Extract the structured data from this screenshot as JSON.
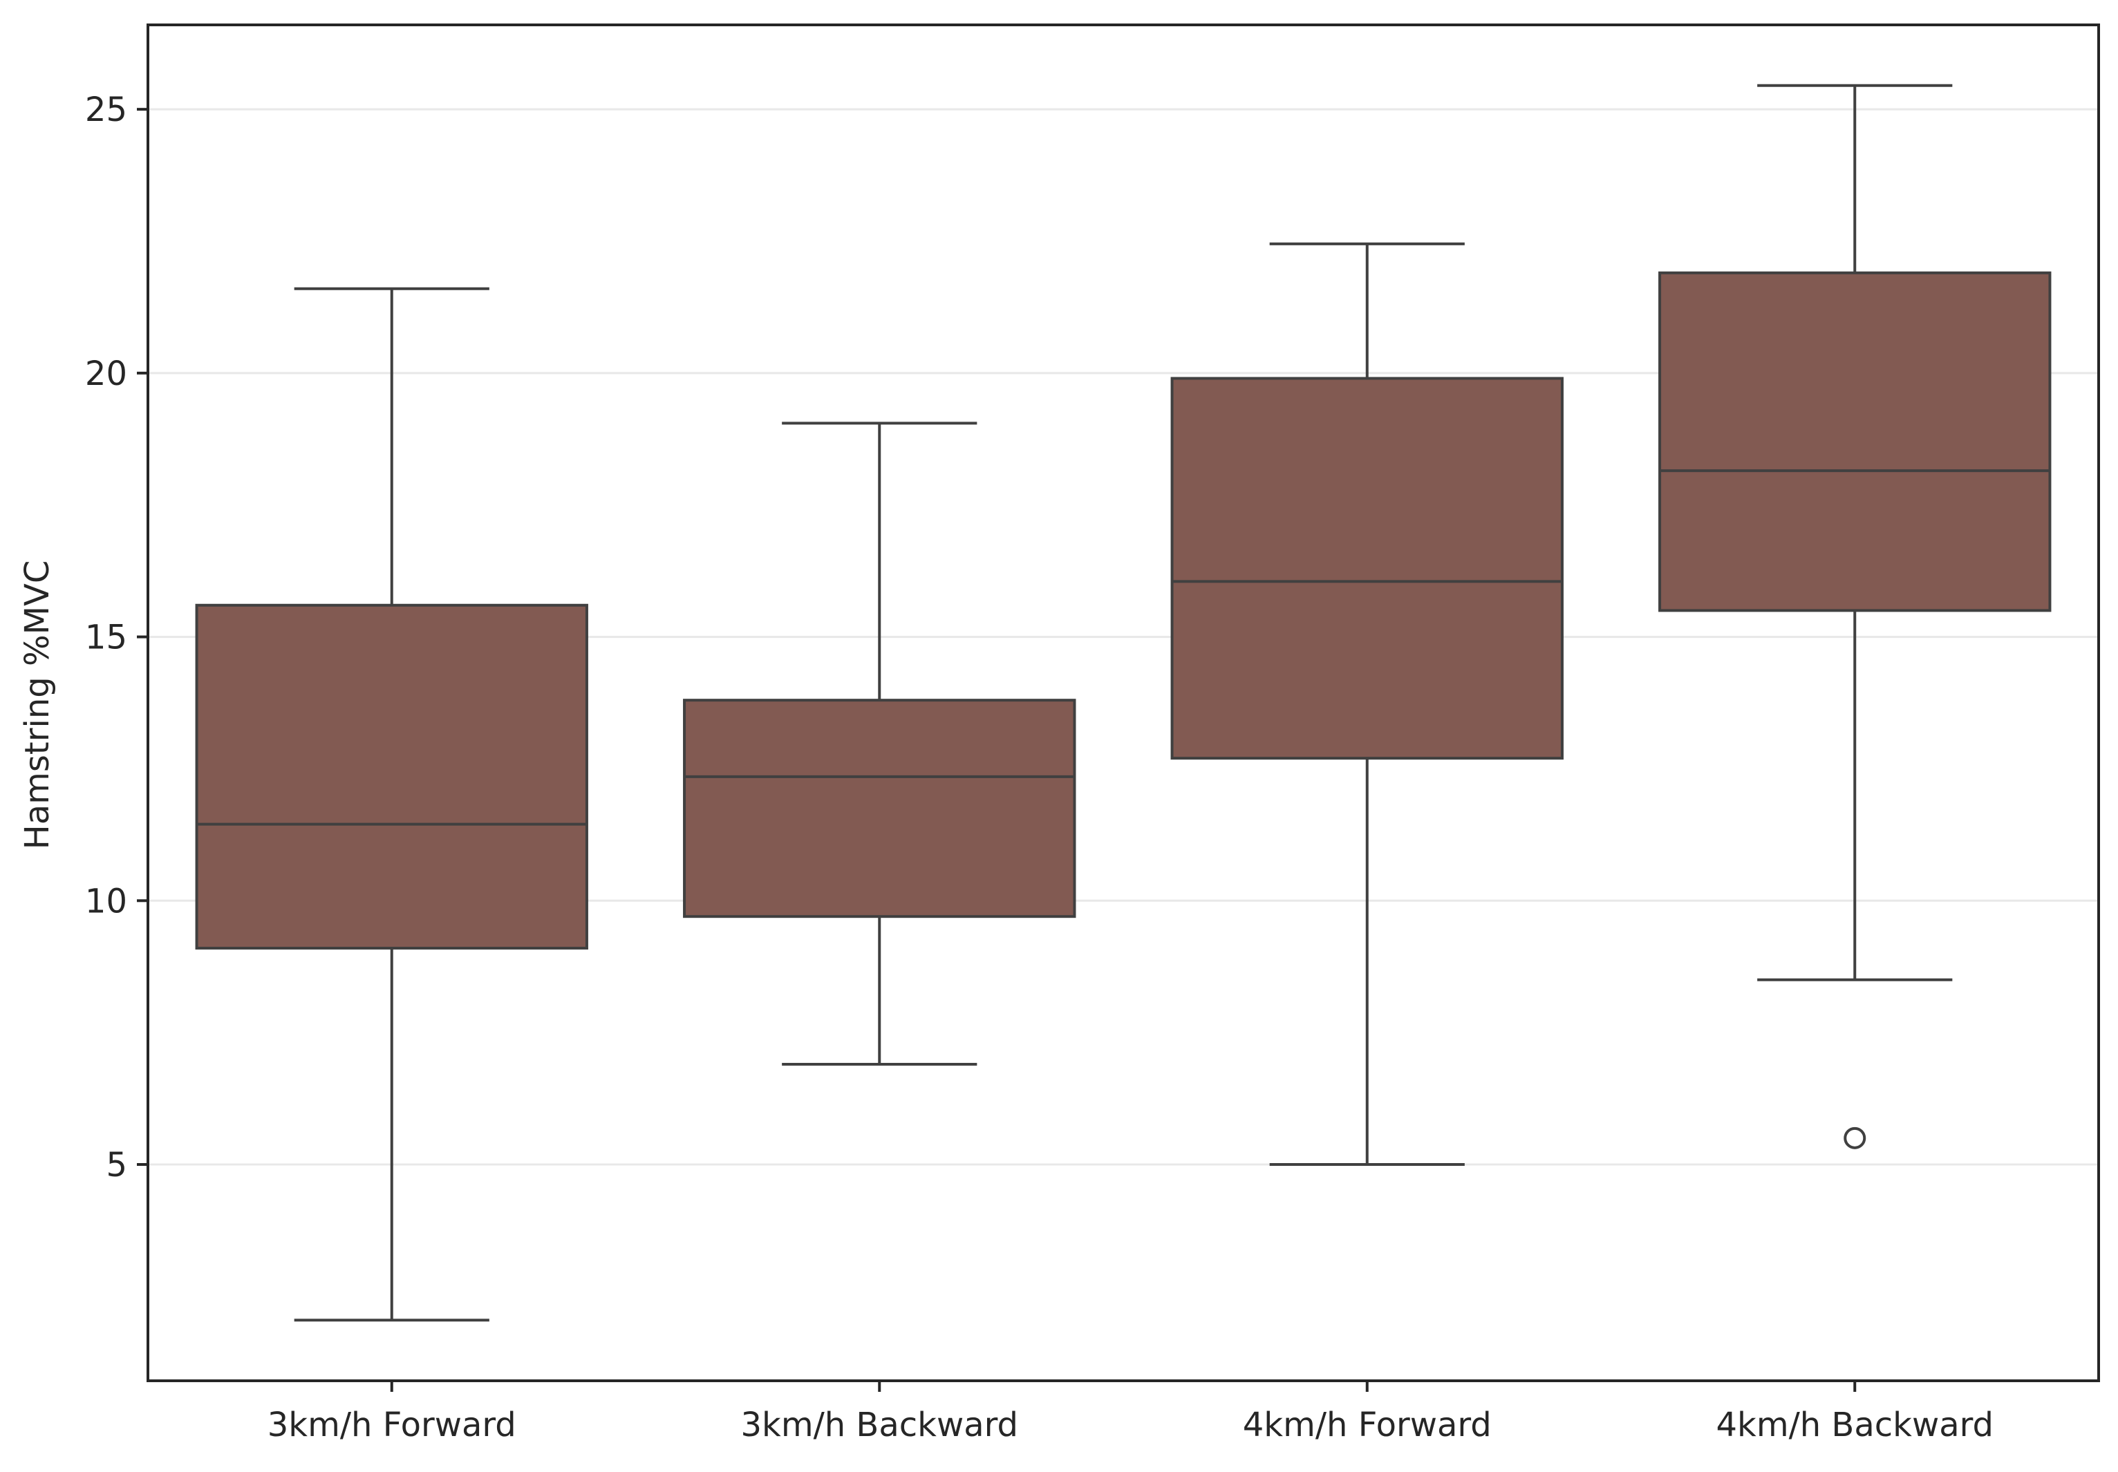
{
  "chart_data": {
    "type": "box",
    "ylabel": "Hamstring %MVC",
    "xlabel": "",
    "title": "",
    "ylim": [
      0.9,
      26.6
    ],
    "yticks": [
      5,
      10,
      15,
      20,
      25
    ],
    "grid": "horizontal",
    "legend": "none",
    "categories": [
      "3km/h Forward",
      "3km/h Backward",
      "4km/h Forward",
      "4km/h Backward"
    ],
    "boxes": [
      {
        "whisker_low": 2.05,
        "q1": 9.1,
        "median": 11.45,
        "q3": 15.6,
        "whisker_high": 21.6,
        "outliers": []
      },
      {
        "whisker_low": 6.9,
        "q1": 9.7,
        "median": 12.35,
        "q3": 13.8,
        "whisker_high": 19.05,
        "outliers": []
      },
      {
        "whisker_low": 5.0,
        "q1": 12.7,
        "median": 16.05,
        "q3": 19.9,
        "whisker_high": 22.45,
        "outliers": []
      },
      {
        "whisker_low": 8.5,
        "q1": 15.5,
        "median": 18.15,
        "q3": 21.9,
        "whisker_high": 25.45,
        "outliers": [
          5.5
        ]
      }
    ],
    "colors": {
      "box_fill": "#825a52",
      "line": "#404040",
      "grid": "#e8e8e8",
      "axis": "#262626"
    }
  }
}
